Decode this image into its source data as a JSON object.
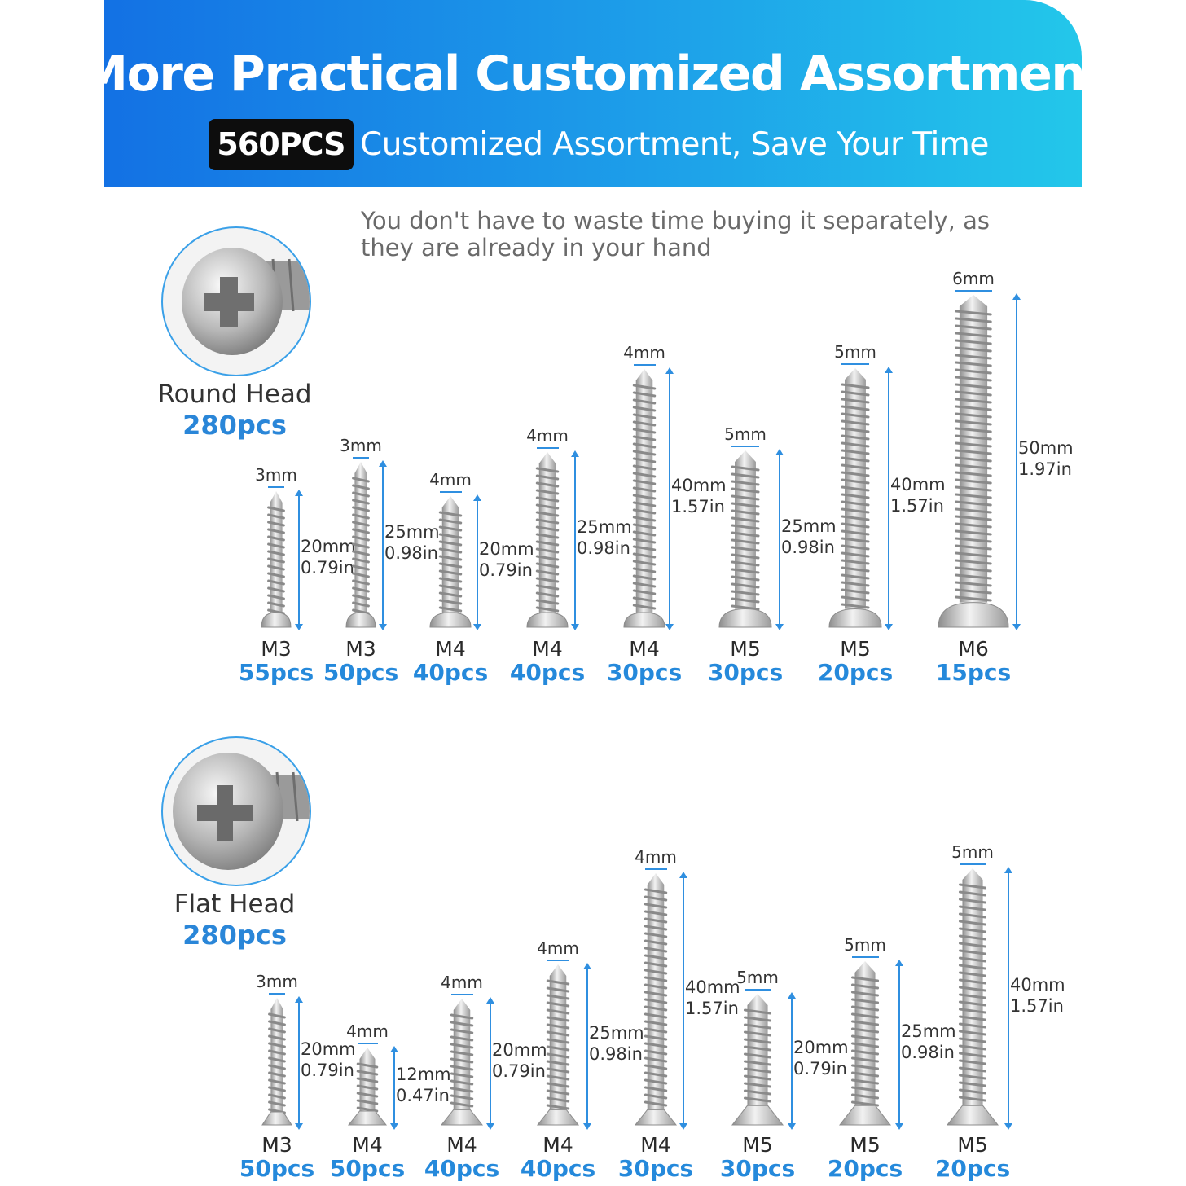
{
  "header": {
    "title": "More Practical Customized Assortment",
    "badge": "560PCS",
    "subtitle": "Customized Assortment, Save Your Time"
  },
  "description": "You don't have to waste time buying it separately, as they are already in your hand",
  "round_head": {
    "name": "Round Head",
    "count": "280pcs",
    "screws": [
      {
        "dia": "3mm",
        "len_mm": "20mm",
        "len_in": "0.79in",
        "size": "M3",
        "pcs": "55pcs"
      },
      {
        "dia": "3mm",
        "len_mm": "25mm",
        "len_in": "0.98in",
        "size": "M3",
        "pcs": "50pcs"
      },
      {
        "dia": "4mm",
        "len_mm": "20mm",
        "len_in": "0.79in",
        "size": "M4",
        "pcs": "40pcs"
      },
      {
        "dia": "4mm",
        "len_mm": "25mm",
        "len_in": "0.98in",
        "size": "M4",
        "pcs": "40pcs"
      },
      {
        "dia": "4mm",
        "len_mm": "40mm",
        "len_in": "1.57in",
        "size": "M4",
        "pcs": "30pcs"
      },
      {
        "dia": "5mm",
        "len_mm": "25mm",
        "len_in": "0.98in",
        "size": "M5",
        "pcs": "30pcs"
      },
      {
        "dia": "5mm",
        "len_mm": "40mm",
        "len_in": "1.57in",
        "size": "M5",
        "pcs": "20pcs"
      },
      {
        "dia": "6mm",
        "len_mm": "50mm",
        "len_in": "1.97in",
        "size": "M6",
        "pcs": "15pcs"
      }
    ]
  },
  "flat_head": {
    "name": "Flat Head",
    "count": "280pcs",
    "screws": [
      {
        "dia": "3mm",
        "len_mm": "20mm",
        "len_in": "0.79in",
        "size": "M3",
        "pcs": "50pcs"
      },
      {
        "dia": "4mm",
        "len_mm": "12mm",
        "len_in": "0.47in",
        "size": "M4",
        "pcs": "50pcs"
      },
      {
        "dia": "4mm",
        "len_mm": "20mm",
        "len_in": "0.79in",
        "size": "M4",
        "pcs": "40pcs"
      },
      {
        "dia": "4mm",
        "len_mm": "25mm",
        "len_in": "0.98in",
        "size": "M4",
        "pcs": "40pcs"
      },
      {
        "dia": "4mm",
        "len_mm": "40mm",
        "len_in": "1.57in",
        "size": "M4",
        "pcs": "30pcs"
      },
      {
        "dia": "5mm",
        "len_mm": "20mm",
        "len_in": "0.79in",
        "size": "M5",
        "pcs": "30pcs"
      },
      {
        "dia": "5mm",
        "len_mm": "25mm",
        "len_in": "0.98in",
        "size": "M5",
        "pcs": "20pcs"
      },
      {
        "dia": "5mm",
        "len_mm": "40mm",
        "len_in": "1.57in",
        "size": "M5",
        "pcs": "20pcs"
      }
    ]
  }
}
